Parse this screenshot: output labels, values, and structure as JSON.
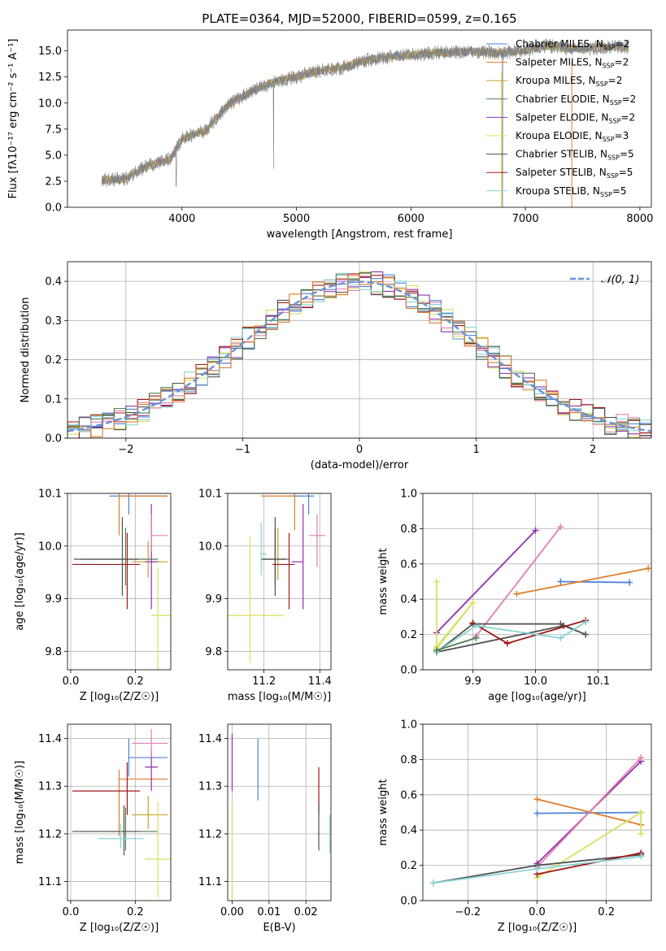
{
  "colors": {
    "Chabrier MILES": "#4d82d8",
    "Salpeter MILES": "#e07d2a",
    "Kroupa MILES": "#c8a028",
    "Chabrier ELODIE": "#4f7f4f",
    "Salpeter ELODIE": "#9030b0",
    "Kroupa ELODIE": "#d8e060",
    "Chabrier STELIB": "#505050",
    "Salpeter STELIB": "#a01818",
    "Kroupa STELIB": "#88d4d4",
    "pink": "#e080b0",
    "spectrum": "#808080",
    "normal": "#6a92d4"
  },
  "chart_data": [
    {
      "id": "spectrum",
      "type": "line",
      "title": "PLATE=0364, MJD=52000, FIBERID=0599, z=0.165",
      "xlabel": "wavelength [Angstrom, rest frame]",
      "ylabel": "Flux [fλ10⁻¹⁷ erg cm⁻² s⁻¹ A⁻¹]",
      "xlim": [
        3000,
        8100
      ],
      "ylim": [
        0,
        17
      ],
      "xticks": [
        "4000",
        "5000",
        "6000",
        "7000",
        "8000"
      ],
      "yticks": [
        "0.0",
        "2.5",
        "5.0",
        "7.5",
        "10.0",
        "12.5",
        "15.0"
      ],
      "legend_position": "top-right",
      "legend": [
        {
          "label": "Chabrier MILES, N",
          "sub": "SSP",
          "tail": "=2"
        },
        {
          "label": "Salpeter MILES, N",
          "sub": "SSP",
          "tail": "=2"
        },
        {
          "label": "Kroupa MILES, N",
          "sub": "SSP",
          "tail": "=2"
        },
        {
          "label": "Chabrier ELODIE, N",
          "sub": "SSP",
          "tail": "=2"
        },
        {
          "label": "Salpeter ELODIE, N",
          "sub": "SSP",
          "tail": "=2"
        },
        {
          "label": "Kroupa ELODIE, N",
          "sub": "SSP",
          "tail": "=3"
        },
        {
          "label": "Chabrier STELIB, N",
          "sub": "SSP",
          "tail": "=5"
        },
        {
          "label": "Salpeter STELIB, N",
          "sub": "SSP",
          "tail": "=5"
        },
        {
          "label": "Kroupa STELIB, N",
          "sub": "SSP",
          "tail": "=5"
        }
      ],
      "continuum": [
        [
          3300,
          2.6
        ],
        [
          3500,
          2.7
        ],
        [
          3700,
          4.0
        ],
        [
          3900,
          4.6
        ],
        [
          4000,
          6.6
        ],
        [
          4200,
          7.3
        ],
        [
          4400,
          9.8
        ],
        [
          4600,
          11.1
        ],
        [
          4800,
          12.0
        ],
        [
          5000,
          12.5
        ],
        [
          5200,
          13.1
        ],
        [
          5400,
          13.4
        ],
        [
          5600,
          14.1
        ],
        [
          5800,
          14.4
        ],
        [
          6000,
          14.6
        ],
        [
          6200,
          14.8
        ],
        [
          6400,
          14.9
        ],
        [
          6600,
          14.9
        ],
        [
          6800,
          14.8
        ],
        [
          7000,
          15.1
        ],
        [
          7200,
          15.5
        ],
        [
          7400,
          15.2
        ],
        [
          7600,
          15.3
        ],
        [
          7800,
          15.4
        ],
        [
          7900,
          15.3
        ]
      ]
    },
    {
      "id": "residuals",
      "type": "line",
      "xlabel": "(data-model)/error",
      "ylabel": "Normed distribution",
      "xlim": [
        -2.5,
        2.5
      ],
      "ylim": [
        0,
        0.45
      ],
      "xticks": [
        "−2",
        "−1",
        "0",
        "1",
        "2"
      ],
      "yticks": [
        "0.0",
        "0.1",
        "0.2",
        "0.3",
        "0.4"
      ],
      "legend": "𝒩(0, 1)",
      "legend_position": "top-right",
      "bin_width": 0.1
    },
    {
      "id": "age-vs-Z",
      "type": "scatter",
      "xlabel": "Z [log₁₀(Z/Z☉)]",
      "ylabel": "age  [log₁₀(age/yr)]",
      "xlim": [
        -0.01,
        0.31
      ],
      "ylim": [
        9.765,
        10.1
      ],
      "xticks": [
        "0.0",
        "0.2"
      ],
      "yticks": [
        "9.8",
        "9.9",
        "10.0",
        "10.1"
      ],
      "points": [
        {
          "model": "Chabrier MILES",
          "x": 0.18,
          "xerr": [
            0.06,
            0.12
          ],
          "y": 10.095,
          "yerr": [
            0.035,
            0.035
          ]
        },
        {
          "model": "Salpeter MILES",
          "x": 0.15,
          "xerr": [
            0.0,
            0.15
          ],
          "y": 10.095,
          "yerr": [
            0.075,
            0.085
          ]
        },
        {
          "model": "Kroupa MILES",
          "x": 0.24,
          "xerr": [
            0.05,
            0.06
          ],
          "y": 9.97,
          "yerr": [
            0.03,
            0.04
          ]
        },
        {
          "model": "Chabrier ELODIE",
          "x": 0.17,
          "xerr": [
            0.14,
            0.1
          ],
          "y": 9.975,
          "yerr": [
            0.05,
            0.06
          ]
        },
        {
          "model": "Salpeter ELODIE",
          "x": 0.25,
          "xerr": [
            0.02,
            0.02
          ],
          "y": 9.97,
          "yerr": [
            0.09,
            0.11
          ]
        },
        {
          "model": "Kroupa ELODIE",
          "x": 0.27,
          "xerr": [
            0.02,
            0.04
          ],
          "y": 9.868,
          "yerr": [
            0.11,
            0.09
          ]
        },
        {
          "model": "Chabrier STELIB",
          "x": 0.16,
          "xerr": [
            0.15,
            0.05
          ],
          "y": 9.975,
          "yerr": [
            0.07,
            0.08
          ]
        },
        {
          "model": "Salpeter STELIB",
          "x": 0.175,
          "xerr": [
            0.17,
            0.04
          ],
          "y": 9.965,
          "yerr": [
            0.085,
            0.06
          ]
        },
        {
          "model": "pink",
          "x": 0.25,
          "xerr": [
            0.0,
            0.05
          ],
          "y": 10.02,
          "yerr": [
            0.03,
            0.04
          ]
        }
      ]
    },
    {
      "id": "age-vs-mass",
      "type": "scatter",
      "xlabel": "mass [log₁₀(M/M☉)]",
      "ylabel": "",
      "xlim": [
        11.07,
        11.44
      ],
      "ylim": [
        9.765,
        10.1
      ],
      "xticks": [
        "11.2",
        "11.4"
      ],
      "yticks": [
        "9.8",
        "9.9",
        "10.0",
        "10.1"
      ],
      "points": [
        {
          "model": "Chabrier MILES",
          "x": 11.36,
          "xerr": [
            0.07,
            0.02
          ],
          "y": 10.095,
          "yerr": [
            0.035,
            0.035
          ]
        },
        {
          "model": "Salpeter MILES",
          "x": 11.31,
          "xerr": [
            0.12,
            0.0
          ],
          "y": 10.095,
          "yerr": [
            0.065,
            0.075
          ]
        },
        {
          "model": "Kroupa MILES",
          "x": 11.25,
          "xerr": [
            0.05,
            0.03
          ],
          "y": 9.975,
          "yerr": [
            0.04,
            0.06
          ]
        },
        {
          "model": "Chabrier ELODIE",
          "x": 11.24,
          "xerr": [
            0.05,
            0.05
          ],
          "y": 9.975,
          "yerr": [
            0.05,
            0.06
          ]
        },
        {
          "model": "Salpeter ELODIE",
          "x": 11.34,
          "xerr": [
            0.04,
            0.0
          ],
          "y": 9.97,
          "yerr": [
            0.09,
            0.11
          ]
        },
        {
          "model": "Kroupa ELODIE",
          "x": 11.15,
          "xerr": [
            0.08,
            0.12
          ],
          "y": 9.868,
          "yerr": [
            0.09,
            0.15
          ]
        },
        {
          "model": "Chabrier STELIB",
          "x": 11.24,
          "xerr": [
            0.05,
            0.04
          ],
          "y": 9.975,
          "yerr": [
            0.07,
            0.08
          ]
        },
        {
          "model": "Salpeter STELIB",
          "x": 11.29,
          "xerr": [
            0.06,
            0.02
          ],
          "y": 9.965,
          "yerr": [
            0.085,
            0.06
          ]
        },
        {
          "model": "Kroupa STELIB",
          "x": 11.19,
          "xerr": [
            0.0,
            0.02
          ],
          "y": 9.985,
          "yerr": [
            0.04,
            0.06
          ]
        },
        {
          "model": "pink",
          "x": 11.39,
          "xerr": [
            0.03,
            0.03
          ],
          "y": 10.02,
          "yerr": [
            0.06,
            0.04
          ]
        }
      ]
    },
    {
      "id": "weight-vs-age",
      "type": "line",
      "xlabel": "age  [log₁₀(age/yr)]",
      "ylabel": "mass weight",
      "xlim": [
        9.82,
        10.185
      ],
      "ylim": [
        0,
        1
      ],
      "xticks": [
        "9.9",
        "10.0",
        "10.1"
      ],
      "yticks": [
        "0.0",
        "0.2",
        "0.4",
        "0.6",
        "0.8",
        "1.0"
      ],
      "series": [
        {
          "model": "Chabrier MILES",
          "x": [
            10.04,
            10.15
          ],
          "y": [
            0.5,
            0.495
          ]
        },
        {
          "model": "Salpeter MILES",
          "x": [
            9.97,
            10.18
          ],
          "y": [
            0.43,
            0.575
          ]
        },
        {
          "model": "Salpeter ELODIE",
          "x": [
            9.842,
            10.0
          ],
          "y": [
            0.21,
            0.79
          ]
        },
        {
          "model": "pink",
          "x": [
            9.905,
            10.04
          ],
          "y": [
            0.19,
            0.81
          ]
        },
        {
          "model": "Kroupa ELODIE",
          "x": [
            9.842,
            9.842,
            9.9,
            9.842
          ],
          "y": [
            0.5,
            0.13,
            0.38,
            0.12
          ]
        },
        {
          "model": "Chabrier STELIB",
          "x": [
            9.842,
            10.045,
            10.08,
            10.04,
            9.9,
            9.842
          ],
          "y": [
            0.1,
            0.25,
            0.2,
            0.26,
            0.26,
            0.1
          ]
        },
        {
          "model": "Salpeter STELIB",
          "x": [
            9.9,
            9.955,
            10.08
          ],
          "y": [
            0.265,
            0.15,
            0.28
          ]
        },
        {
          "model": "Kroupa STELIB",
          "x": [
            9.842,
            9.905,
            10.04,
            10.08
          ],
          "y": [
            0.1,
            0.25,
            0.18,
            0.27
          ]
        },
        {
          "model": "Chabrier ELODIE",
          "x": [
            9.842,
            9.905
          ],
          "y": [
            0.11,
            0.18
          ]
        }
      ]
    },
    {
      "id": "mass-vs-Z",
      "type": "scatter",
      "xlabel": "Z [log₁₀(Z/Z☉)]",
      "ylabel": "mass [log₁₀(M/M☉)]",
      "xlim": [
        -0.01,
        0.31
      ],
      "ylim": [
        11.06,
        11.43
      ],
      "xticks": [
        "0.0",
        "0.2"
      ],
      "yticks": [
        "11.1",
        "11.2",
        "11.3",
        "11.4"
      ],
      "points": [
        {
          "model": "Chabrier MILES",
          "x": 0.18,
          "xerr": [
            0.0,
            0.12
          ],
          "y": 11.36,
          "yerr": [
            0.04,
            0.04
          ]
        },
        {
          "model": "Salpeter MILES",
          "x": 0.15,
          "xerr": [
            0.0,
            0.15
          ],
          "y": 11.315,
          "yerr": [
            0.12,
            0.02
          ]
        },
        {
          "model": "Kroupa MILES",
          "x": 0.24,
          "xerr": [
            0.05,
            0.06
          ],
          "y": 11.24,
          "yerr": [
            0.03,
            0.04
          ]
        },
        {
          "model": "Chabrier ELODIE",
          "x": 0.17,
          "xerr": [
            0.14,
            0.1
          ],
          "y": 11.205,
          "yerr": [
            0.04,
            0.05
          ]
        },
        {
          "model": "Salpeter ELODIE",
          "x": 0.25,
          "xerr": [
            0.02,
            0.02
          ],
          "y": 11.34,
          "yerr": [
            0.05,
            0.035
          ]
        },
        {
          "model": "Kroupa ELODIE",
          "x": 0.27,
          "xerr": [
            0.04,
            0.04
          ],
          "y": 11.147,
          "yerr": [
            0.08,
            0.12
          ]
        },
        {
          "model": "Chabrier STELIB",
          "x": 0.165,
          "xerr": [
            0.16,
            0.05
          ],
          "y": 11.205,
          "yerr": [
            0.05,
            0.055
          ]
        },
        {
          "model": "Salpeter STELIB",
          "x": 0.175,
          "xerr": [
            0.17,
            0.04
          ],
          "y": 11.29,
          "yerr": [
            0.05,
            0.06
          ]
        },
        {
          "model": "Kroupa STELIB",
          "x": 0.155,
          "xerr": [
            0.07,
            0.07
          ],
          "y": 11.19,
          "yerr": [
            0.02,
            0.03
          ]
        },
        {
          "model": "pink",
          "x": 0.25,
          "xerr": [
            0.06,
            0.05
          ],
          "y": 11.39,
          "yerr": [
            0.03,
            0.03
          ]
        }
      ]
    },
    {
      "id": "mass-vs-EBV",
      "type": "scatter",
      "xlabel": "E(B-V)",
      "ylabel": "",
      "xlim": [
        -0.0012,
        0.0268
      ],
      "ylim": [
        11.06,
        11.43
      ],
      "xticks": [
        "0.00",
        "0.01",
        "0.02"
      ],
      "yticks": [
        "11.1",
        "11.2",
        "11.3",
        "11.4"
      ],
      "points": [
        {
          "model": "Salpeter ELODIE",
          "x": 0.0,
          "xerr": [
            0,
            0
          ],
          "y": 11.34,
          "yerr": [
            0.05,
            0.07
          ]
        },
        {
          "model": "Kroupa ELODIE",
          "x": 0.0,
          "xerr": [
            0,
            0
          ],
          "y": 11.147,
          "yerr": [
            0.09,
            0.12
          ]
        },
        {
          "model": "Chabrier MILES",
          "x": 0.007,
          "xerr": [
            0,
            0
          ],
          "y": 11.34,
          "yerr": [
            0.07,
            0.06
          ]
        },
        {
          "model": "Salpeter STELIB",
          "x": 0.0235,
          "xerr": [
            0,
            0
          ],
          "y": 11.29,
          "yerr": [
            0.05,
            0.05
          ]
        },
        {
          "model": "Chabrier STELIB",
          "x": 0.0235,
          "xerr": [
            0,
            0
          ],
          "y": 11.205,
          "yerr": [
            0.04,
            0.06
          ]
        },
        {
          "model": "Kroupa STELIB",
          "x": 0.0265,
          "xerr": [
            0,
            0
          ],
          "y": 11.2,
          "yerr": [
            0.04,
            0.04
          ]
        }
      ]
    },
    {
      "id": "weight-vs-Z",
      "type": "line",
      "xlabel": "Z [log₁₀(Z/Z☉)]",
      "ylabel": "mass weight",
      "xlim": [
        -0.33,
        0.33
      ],
      "ylim": [
        0,
        1
      ],
      "xticks": [
        "−0.2",
        "0.0",
        "0.2"
      ],
      "yticks": [
        "0.0",
        "0.2",
        "0.4",
        "0.6",
        "0.8",
        "1.0"
      ],
      "series": [
        {
          "model": "Chabrier MILES",
          "x": [
            0.0,
            0.3
          ],
          "y": [
            0.495,
            0.5
          ]
        },
        {
          "model": "Salpeter MILES",
          "x": [
            0.0,
            0.3
          ],
          "y": [
            0.575,
            0.43
          ]
        },
        {
          "model": "Salpeter ELODIE",
          "x": [
            0.0,
            0.3
          ],
          "y": [
            0.21,
            0.79
          ]
        },
        {
          "model": "pink",
          "x": [
            0.0,
            0.3
          ],
          "y": [
            0.19,
            0.81
          ]
        },
        {
          "model": "Kroupa ELODIE",
          "x": [
            0.0,
            0.3,
            0.3
          ],
          "y": [
            0.13,
            0.5,
            0.38
          ]
        },
        {
          "model": "Chabrier STELIB",
          "x": [
            -0.3,
            0.0,
            0.3
          ],
          "y": [
            0.1,
            0.2,
            0.26
          ]
        },
        {
          "model": "Salpeter STELIB",
          "x": [
            0.0,
            0.3
          ],
          "y": [
            0.15,
            0.27
          ]
        },
        {
          "model": "Kroupa STELIB",
          "x": [
            -0.3,
            0.0,
            0.3
          ],
          "y": [
            0.1,
            0.18,
            0.25
          ]
        }
      ]
    }
  ]
}
